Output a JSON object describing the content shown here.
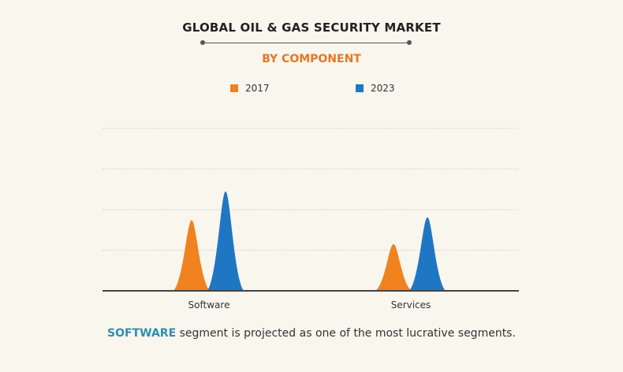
{
  "header": {
    "title": "GLOBAL OIL & GAS SECURITY MARKET",
    "subtitle": "BY COMPONENT"
  },
  "colors": {
    "series_2017": "#f0821f",
    "series_2023": "#1f77c3",
    "highlight": "#2e8fb0",
    "subtitle": "#e87722"
  },
  "chart_data": {
    "type": "area",
    "categories": [
      "Software",
      "Services"
    ],
    "series": [
      {
        "name": "2017",
        "values": [
          1.74,
          1.15
        ]
      },
      {
        "name": "2023",
        "values": [
          2.45,
          1.81
        ]
      }
    ],
    "title": "GLOBAL OIL & GAS SECURITY MARKET",
    "subtitle": "BY COMPONENT",
    "xlabel": "",
    "ylabel": "",
    "ylim": [
      0,
      4
    ],
    "grid": true,
    "legend": "top-center"
  },
  "footer": {
    "highlight": "SOFTWARE",
    "text": " segment is projected as one of the most lucrative segments."
  }
}
